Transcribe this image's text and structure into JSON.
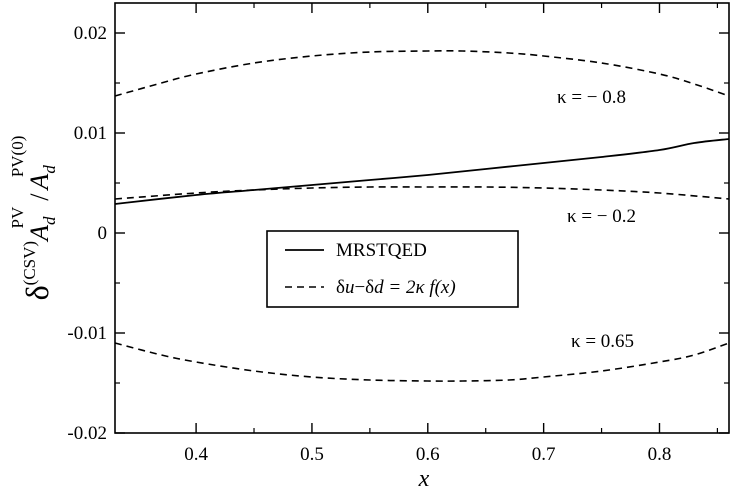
{
  "chart_data": {
    "type": "line",
    "xlabel": "x",
    "ylabel": {
      "delta": "δ",
      "csv_sup": "(CSV)",
      "a1": "A",
      "a1_sub": "d",
      "a1_sup": "PV",
      "slash": "/",
      "a2": "A",
      "a2_sub": "d",
      "a2_sup": "PV(0)"
    },
    "xlim": [
      0.33,
      0.86
    ],
    "ylim": [
      -0.02,
      0.023
    ],
    "xticks": [
      0.4,
      0.5,
      0.6,
      0.7,
      0.8
    ],
    "xtick_labels": [
      "0.4",
      "0.5",
      "0.6",
      "0.7",
      "0.8"
    ],
    "yticks": [
      -0.02,
      -0.01,
      0,
      0.01,
      0.02
    ],
    "ytick_labels": [
      "-0.02",
      "-0.01",
      "0",
      "0.01",
      "0.02"
    ],
    "grid": false,
    "legend_position": "center-left",
    "legend": [
      {
        "label": "MRSTQED",
        "style": "solid"
      },
      {
        "label_parts": [
          "δ",
          "u",
          "−δ",
          "d",
          " = 2κ",
          " f(x)"
        ],
        "style": "dashed"
      }
    ],
    "annotations": [
      {
        "text": "κ = − 0.8",
        "x": 0.74,
        "y": 0.0132
      },
      {
        "text": "κ = − 0.2",
        "x": 0.74,
        "y": 0.0015
      },
      {
        "text": "κ = 0.65",
        "x": 0.745,
        "y": -0.0108
      }
    ],
    "series": [
      {
        "name": "MRSTQED",
        "style": "solid",
        "x": [
          0.33,
          0.4,
          0.45,
          0.5,
          0.55,
          0.6,
          0.65,
          0.7,
          0.75,
          0.8,
          0.83,
          0.86
        ],
        "y": [
          0.0029,
          0.0038,
          0.0043,
          0.0048,
          0.0053,
          0.0058,
          0.0064,
          0.007,
          0.0076,
          0.0083,
          0.009,
          0.0094
        ]
      },
      {
        "name": "κ = − 0.8",
        "style": "dashed",
        "x": [
          0.33,
          0.37,
          0.4,
          0.45,
          0.5,
          0.55,
          0.6,
          0.63,
          0.67,
          0.7,
          0.75,
          0.8,
          0.83,
          0.86
        ],
        "y": [
          0.0137,
          0.015,
          0.0159,
          0.017,
          0.0177,
          0.0181,
          0.0182,
          0.0182,
          0.018,
          0.0177,
          0.017,
          0.0159,
          0.0149,
          0.0137
        ]
      },
      {
        "name": "κ = − 0.2",
        "style": "dashed",
        "x": [
          0.33,
          0.4,
          0.45,
          0.5,
          0.55,
          0.6,
          0.65,
          0.7,
          0.75,
          0.8,
          0.86
        ],
        "y": [
          0.0034,
          0.004,
          0.0043,
          0.0045,
          0.0046,
          0.0046,
          0.0046,
          0.0045,
          0.0043,
          0.004,
          0.0034
        ]
      },
      {
        "name": "κ = 0.65",
        "style": "dashed",
        "x": [
          0.33,
          0.37,
          0.4,
          0.45,
          0.5,
          0.55,
          0.6,
          0.63,
          0.67,
          0.7,
          0.75,
          0.8,
          0.83,
          0.86
        ],
        "y": [
          -0.011,
          -0.0122,
          -0.0129,
          -0.0138,
          -0.0144,
          -0.0147,
          -0.0148,
          -0.0148,
          -0.0147,
          -0.0144,
          -0.0138,
          -0.0129,
          -0.0122,
          -0.011
        ]
      }
    ]
  }
}
